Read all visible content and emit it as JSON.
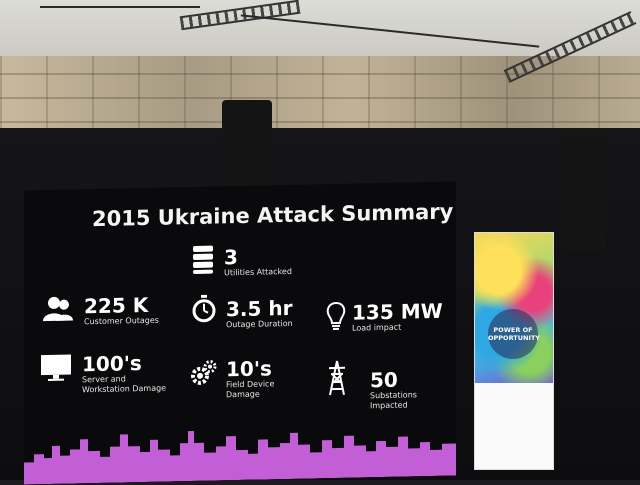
{
  "slide": {
    "title": "2015 Ukraine Attack Summary",
    "stats": [
      {
        "value": "3",
        "label": "Utilities Attacked",
        "icon": "server-stack-icon"
      },
      {
        "value": "225 K",
        "label": "Customer Outages",
        "icon": "people-icon"
      },
      {
        "value": "3.5 hr",
        "label": "Outage Duration",
        "icon": "stopwatch-icon"
      },
      {
        "value": "135 MW",
        "label": "Load impact",
        "icon": "lightbulb-icon"
      },
      {
        "value": "100's",
        "label_line1": "Server and",
        "label_line2": "Workstation Damage",
        "icon": "monitor-icon"
      },
      {
        "value": "10's",
        "label_line1": "Field Device",
        "label_line2": "Damage",
        "icon": "gears-icon"
      },
      {
        "value": "50",
        "label": "Substations Impacted",
        "icon": "power-tower-icon"
      }
    ],
    "skyline_color": "#c35fd6"
  },
  "banner": {
    "line1": "POWER OF",
    "line2": "OPPORTUNITY"
  },
  "colors": {
    "screen_bg": "#0a0a0c",
    "text": "#ffffff",
    "skyline": "#c35fd6"
  }
}
